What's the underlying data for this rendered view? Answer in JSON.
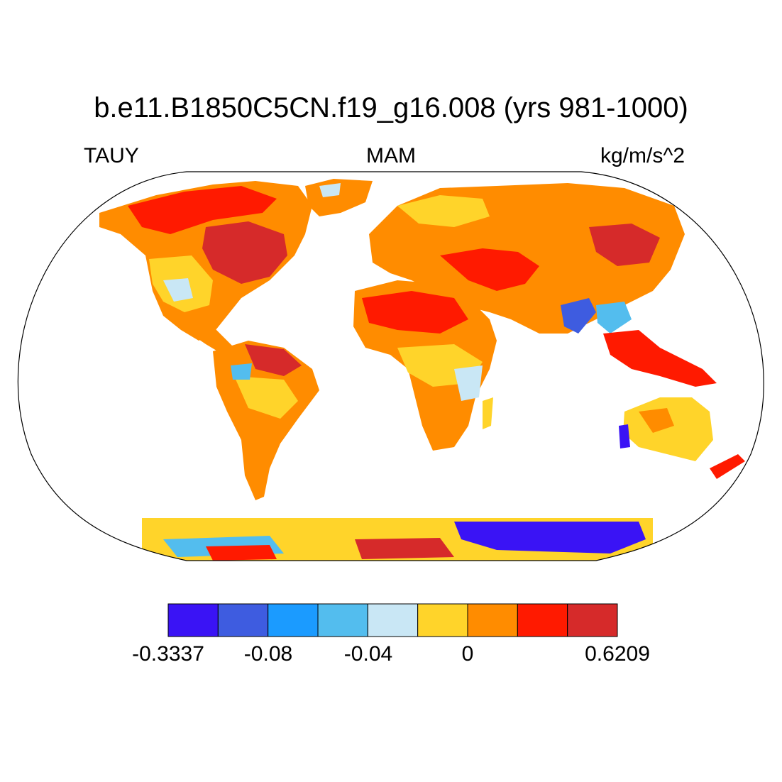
{
  "title": "b.e11.B1850C5CN.f19_g16.008 (yrs 981-1000)",
  "left_string": "TAUY",
  "center_string": "MAM",
  "right_string": "kg/m/s^2",
  "projection": "Robinson",
  "variable": "TAUY",
  "season": "MAM",
  "units": "kg/m/s^2",
  "colorbar": {
    "colors": [
      "#3a13f5",
      "#3e5ce0",
      "#1b9bff",
      "#53bdee",
      "#c9e7f5",
      "#ffd42a",
      "#ff8c00",
      "#ff1a00",
      "#d62a2a"
    ],
    "labels": [
      "-0.3337",
      "-0.08",
      "-0.04",
      "0",
      "0.6209"
    ]
  }
}
